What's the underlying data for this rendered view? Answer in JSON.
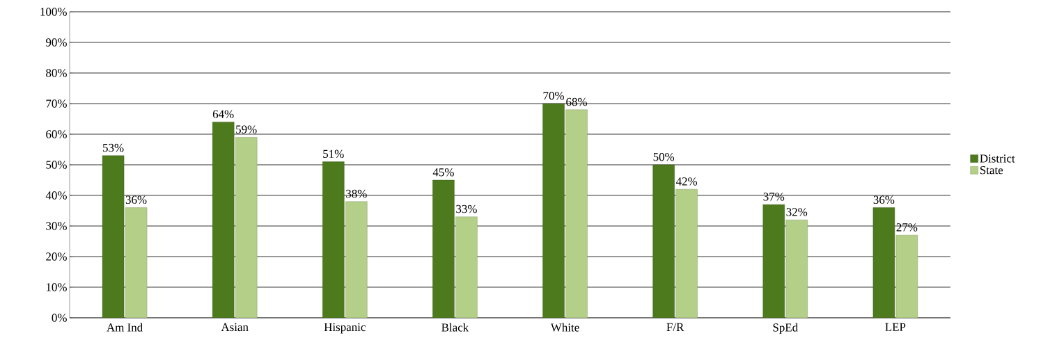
{
  "chart_data": {
    "type": "bar",
    "categories": [
      "Am Ind",
      "Asian",
      "Hispanic",
      "Black",
      "White",
      "F/R",
      "SpEd",
      "LEP"
    ],
    "series": [
      {
        "name": "District",
        "color": "#4e7a1e",
        "values": [
          53,
          64,
          51,
          45,
          70,
          50,
          37,
          36
        ],
        "value_labels": [
          "53%",
          "64%",
          "51%",
          "45%",
          "70%",
          "50%",
          "37%",
          "36%"
        ]
      },
      {
        "name": "State",
        "color": "#b3cf88",
        "values": [
          36,
          59,
          38,
          33,
          68,
          42,
          32,
          27
        ],
        "value_labels": [
          "36%",
          "59%",
          "38%",
          "33%",
          "68%",
          "42%",
          "32%",
          "27%"
        ]
      }
    ],
    "ylim": [
      0,
      100
    ],
    "yticks": [
      {
        "value": 0,
        "label": "0%"
      },
      {
        "value": 10,
        "label": "10%"
      },
      {
        "value": 20,
        "label": "20%"
      },
      {
        "value": 30,
        "label": "30%"
      },
      {
        "value": 40,
        "label": "40%"
      },
      {
        "value": 50,
        "label": "50%"
      },
      {
        "value": 60,
        "label": "60%"
      },
      {
        "value": 70,
        "label": "70%"
      },
      {
        "value": 80,
        "label": "80%"
      },
      {
        "value": 90,
        "label": "90%"
      },
      {
        "value": 100,
        "label": "100%"
      }
    ],
    "grid": "y",
    "legend": "right"
  }
}
